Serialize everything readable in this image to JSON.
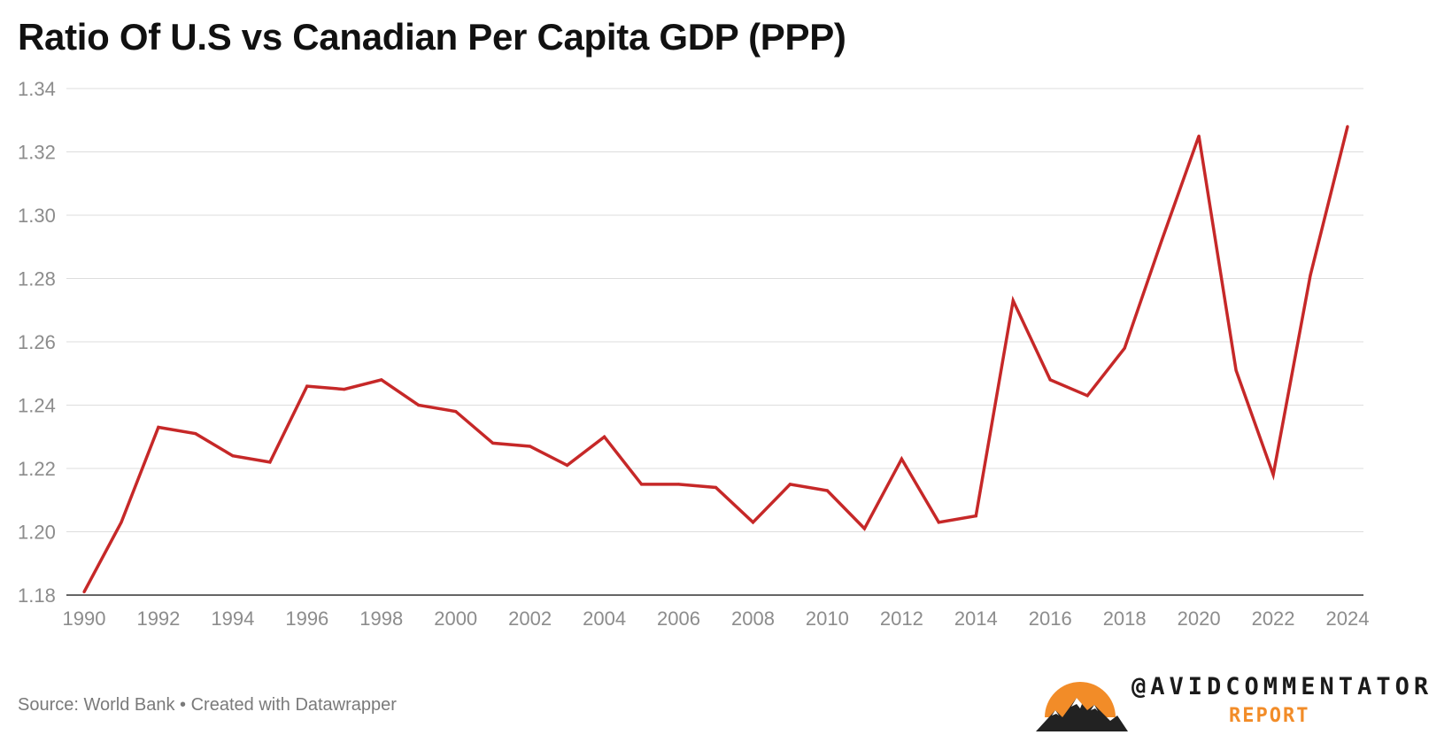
{
  "chart_data": {
    "type": "line",
    "title": "Ratio Of U.S vs Canadian Per Capita GDP (PPP)",
    "xlabel": "",
    "ylabel": "",
    "x": [
      1990,
      1991,
      1992,
      1993,
      1994,
      1995,
      1996,
      1997,
      1998,
      1999,
      2000,
      2001,
      2002,
      2003,
      2004,
      2005,
      2006,
      2007,
      2008,
      2009,
      2010,
      2011,
      2012,
      2013,
      2014,
      2015,
      2016,
      2017,
      2018,
      2019,
      2020,
      2021,
      2022,
      2023,
      2024
    ],
    "series": [
      {
        "name": "Ratio of U.S vs Canadian Per Capita GDP (PPP)",
        "color": "#c62828",
        "values": [
          1.181,
          1.203,
          1.233,
          1.231,
          1.224,
          1.222,
          1.246,
          1.245,
          1.248,
          1.24,
          1.238,
          1.228,
          1.227,
          1.221,
          1.23,
          1.215,
          1.215,
          1.214,
          1.203,
          1.215,
          1.213,
          1.201,
          1.223,
          1.203,
          1.205,
          1.273,
          1.248,
          1.243,
          1.258,
          1.292,
          1.325,
          1.251,
          1.218,
          1.281,
          1.328
        ]
      }
    ],
    "xticks": [
      "1990",
      "1992",
      "1994",
      "1996",
      "1998",
      "2000",
      "2002",
      "2004",
      "2006",
      "2008",
      "2010",
      "2012",
      "2014",
      "2016",
      "2018",
      "2020",
      "2022",
      "2024"
    ],
    "yticks": [
      "1.18",
      "1.20",
      "1.22",
      "1.24",
      "1.26",
      "1.28",
      "1.30",
      "1.32",
      "1.34"
    ],
    "xlim": [
      1990,
      2024
    ],
    "ylim": [
      1.18,
      1.34
    ],
    "grid": true,
    "gridColor": "#dddddd",
    "axisColor": "#333333"
  },
  "footer": {
    "source": "Source: World Bank • Created with Datawrapper"
  },
  "brand": {
    "handle": "@AVIDCOMMENTATOR",
    "subtitle": "REPORT",
    "accent": "#f28c28"
  }
}
